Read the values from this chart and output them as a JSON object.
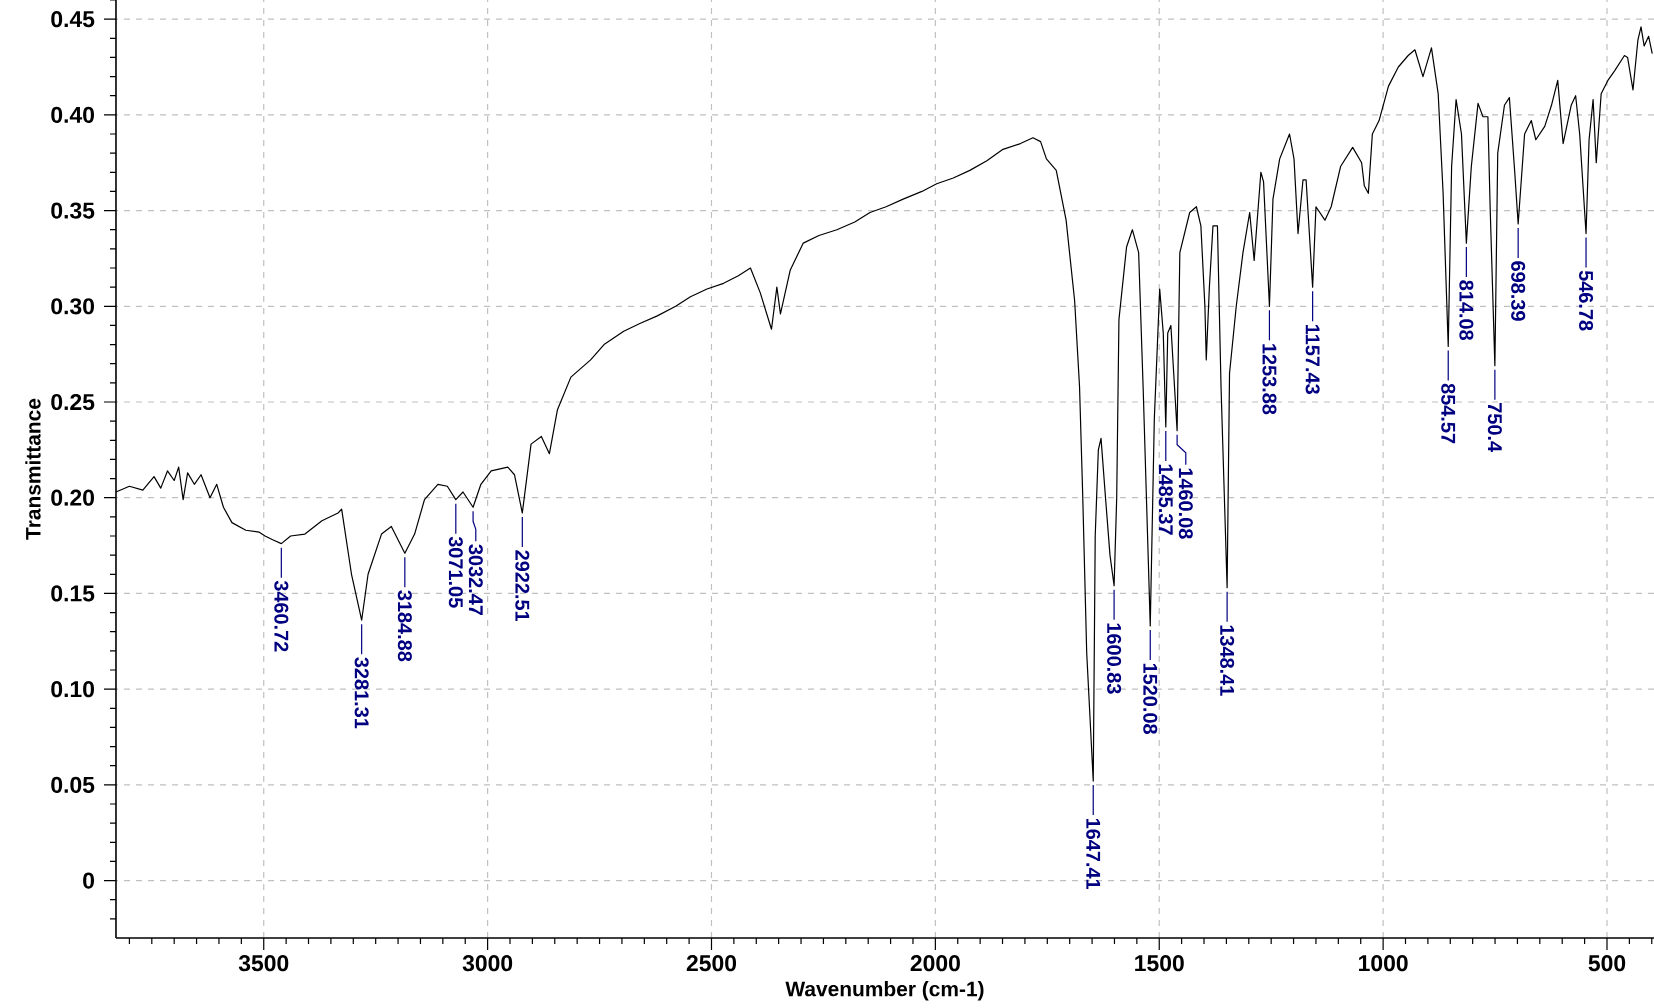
{
  "chart_data": {
    "type": "line",
    "xlabel": "Wavenumber (cm-1)",
    "ylabel": "Transmittance",
    "color": "#000000",
    "grid": true,
    "xlim": [
      3830,
      395
    ],
    "ylim": [
      -0.03,
      0.46
    ],
    "xticks": [
      {
        "value": 3800,
        "label": null
      },
      {
        "value": 3750,
        "label": null
      },
      {
        "value": 3700,
        "label": null
      },
      {
        "value": 3650,
        "label": null
      },
      {
        "value": 3600,
        "label": null
      },
      {
        "value": 3550,
        "label": null
      },
      3500,
      {
        "value": 3450,
        "label": null
      },
      {
        "value": 3400,
        "label": null
      },
      {
        "value": 3350,
        "label": null
      },
      {
        "value": 3300,
        "label": null
      },
      {
        "value": 3250,
        "label": null
      },
      {
        "value": 3200,
        "label": null
      },
      {
        "value": 3150,
        "label": null
      },
      {
        "value": 3100,
        "label": null
      },
      {
        "value": 3050,
        "label": null
      },
      3000,
      {
        "value": 2950,
        "label": null
      },
      {
        "value": 2900,
        "label": null
      },
      {
        "value": 2850,
        "label": null
      },
      {
        "value": 2800,
        "label": null
      },
      {
        "value": 2750,
        "label": null
      },
      {
        "value": 2700,
        "label": null
      },
      {
        "value": 2650,
        "label": null
      },
      {
        "value": 2600,
        "label": null
      },
      {
        "value": 2550,
        "label": null
      },
      2500,
      {
        "value": 2450,
        "label": null
      },
      {
        "value": 2400,
        "label": null
      },
      {
        "value": 2350,
        "label": null
      },
      {
        "value": 2300,
        "label": null
      },
      {
        "value": 2250,
        "label": null
      },
      {
        "value": 2200,
        "label": null
      },
      {
        "value": 2150,
        "label": null
      },
      {
        "value": 2100,
        "label": null
      },
      {
        "value": 2050,
        "label": null
      },
      2000,
      {
        "value": 1950,
        "label": null
      },
      {
        "value": 1900,
        "label": null
      },
      {
        "value": 1850,
        "label": null
      },
      {
        "value": 1800,
        "label": null
      },
      {
        "value": 1750,
        "label": null
      },
      {
        "value": 1700,
        "label": null
      },
      {
        "value": 1650,
        "label": null
      },
      {
        "value": 1600,
        "label": null
      },
      {
        "value": 1550,
        "label": null
      },
      1500,
      {
        "value": 1450,
        "label": null
      },
      {
        "value": 1400,
        "label": null
      },
      {
        "value": 1350,
        "label": null
      },
      {
        "value": 1300,
        "label": null
      },
      {
        "value": 1250,
        "label": null
      },
      {
        "value": 1200,
        "label": null
      },
      {
        "value": 1150,
        "label": null
      },
      {
        "value": 1100,
        "label": null
      },
      {
        "value": 1050,
        "label": null
      },
      1000,
      {
        "value": 950,
        "label": null
      },
      {
        "value": 900,
        "label": null
      },
      {
        "value": 850,
        "label": null
      },
      {
        "value": 800,
        "label": null
      },
      {
        "value": 750,
        "label": null
      },
      {
        "value": 700,
        "label": null
      },
      {
        "value": 650,
        "label": null
      },
      {
        "value": 600,
        "label": null
      },
      {
        "value": 550,
        "label": null
      },
      500,
      {
        "value": 450,
        "label": null
      },
      {
        "value": 400,
        "label": null
      }
    ],
    "yticks": [
      {
        "value": -0.02,
        "label": null
      },
      {
        "value": -0.01,
        "label": null
      },
      0,
      {
        "value": 0.01,
        "label": null
      },
      {
        "value": 0.02,
        "label": null
      },
      {
        "value": 0.03,
        "label": null
      },
      {
        "value": 0.04,
        "label": null
      },
      0.05,
      {
        "value": 0.06,
        "label": null
      },
      {
        "value": 0.07,
        "label": null
      },
      {
        "value": 0.08,
        "label": null
      },
      {
        "value": 0.09,
        "label": null
      },
      {
        "value": 0.1,
        "label": "0.10"
      },
      {
        "value": 0.11,
        "label": null
      },
      {
        "value": 0.12,
        "label": null
      },
      {
        "value": 0.13,
        "label": null
      },
      {
        "value": 0.14,
        "label": null
      },
      0.15,
      {
        "value": 0.16,
        "label": null
      },
      {
        "value": 0.17,
        "label": null
      },
      {
        "value": 0.18,
        "label": null
      },
      {
        "value": 0.19,
        "label": null
      },
      {
        "value": 0.2,
        "label": "0.20"
      },
      {
        "value": 0.21,
        "label": null
      },
      {
        "value": 0.22,
        "label": null
      },
      {
        "value": 0.23,
        "label": null
      },
      {
        "value": 0.24,
        "label": null
      },
      0.25,
      {
        "value": 0.26,
        "label": null
      },
      {
        "value": 0.27,
        "label": null
      },
      {
        "value": 0.28,
        "label": null
      },
      {
        "value": 0.29,
        "label": null
      },
      {
        "value": 0.3,
        "label": "0.30"
      },
      {
        "value": 0.31,
        "label": null
      },
      {
        "value": 0.32,
        "label": null
      },
      {
        "value": 0.33,
        "label": null
      },
      {
        "value": 0.34,
        "label": null
      },
      0.35,
      {
        "value": 0.36,
        "label": null
      },
      {
        "value": 0.37,
        "label": null
      },
      {
        "value": 0.38,
        "label": null
      },
      {
        "value": 0.39,
        "label": null
      },
      {
        "value": 0.4,
        "label": "0.40"
      },
      {
        "value": 0.41,
        "label": null
      },
      {
        "value": 0.42,
        "label": null
      },
      {
        "value": 0.43,
        "label": null
      },
      {
        "value": 0.44,
        "label": null
      },
      0.45,
      {
        "value": 0.46,
        "label": null
      }
    ],
    "x": [
      3830,
      3800,
      3770,
      3745,
      3730,
      3715,
      3700,
      3690,
      3680,
      3670,
      3655,
      3640,
      3620,
      3605,
      3590,
      3571,
      3540,
      3510,
      3497,
      3480,
      3460.72,
      3440,
      3408,
      3370,
      3334,
      3326,
      3304,
      3281.31,
      3267,
      3237,
      3215,
      3184.88,
      3163,
      3141,
      3111,
      3090,
      3071.05,
      3055,
      3032.47,
      3015,
      2992,
      2955,
      2940,
      2922.51,
      2903,
      2880,
      2862,
      2844,
      2814,
      2770,
      2740,
      2696,
      2660,
      2621,
      2580,
      2547,
      2510,
      2473,
      2440,
      2413,
      2391,
      2366,
      2354,
      2346,
      2324,
      2295,
      2260,
      2220,
      2180,
      2146,
      2110,
      2072,
      2030,
      1997,
      1960,
      1923,
      1885,
      1849,
      1810,
      1782,
      1765,
      1752,
      1730,
      1708,
      1689,
      1678,
      1671,
      1662,
      1647.41,
      1643,
      1636,
      1630,
      1620,
      1610,
      1600.83,
      1595,
      1590,
      1573,
      1560,
      1546,
      1536,
      1520.08,
      1511,
      1499,
      1491,
      1485.37,
      1481,
      1474,
      1460.08,
      1454,
      1432,
      1417,
      1407,
      1398,
      1395,
      1388,
      1380,
      1370,
      1362,
      1348.41,
      1343,
      1328,
      1313,
      1298,
      1288,
      1273,
      1267,
      1253.88,
      1246,
      1231,
      1209,
      1199,
      1190,
      1179,
      1172,
      1157.43,
      1150,
      1130,
      1116,
      1095,
      1068,
      1048,
      1042,
      1033,
      1024,
      1009,
      988,
      966,
      944,
      929,
      911,
      892,
      877,
      866,
      854.57,
      847,
      837,
      825,
      814.08,
      803,
      788,
      777,
      766,
      761,
      750.4,
      744,
      729,
      718,
      706,
      698.39,
      684,
      669,
      659,
      639,
      624,
      610,
      598,
      580,
      570,
      561,
      546.78,
      540,
      531,
      524,
      513,
      498,
      483,
      461,
      454,
      442,
      431,
      424,
      417,
      407,
      399
    ],
    "values": [
      0.203,
      0.206,
      0.204,
      0.211,
      0.205,
      0.214,
      0.209,
      0.216,
      0.199,
      0.213,
      0.207,
      0.212,
      0.2,
      0.207,
      0.195,
      0.187,
      0.183,
      0.182,
      0.18,
      0.178,
      0.176,
      0.18,
      0.181,
      0.188,
      0.192,
      0.194,
      0.16,
      0.136,
      0.16,
      0.181,
      0.185,
      0.171,
      0.181,
      0.199,
      0.207,
      0.206,
      0.199,
      0.203,
      0.195,
      0.207,
      0.214,
      0.216,
      0.212,
      0.192,
      0.228,
      0.232,
      0.223,
      0.246,
      0.263,
      0.272,
      0.28,
      0.287,
      0.291,
      0.295,
      0.3,
      0.305,
      0.309,
      0.312,
      0.316,
      0.32,
      0.307,
      0.288,
      0.31,
      0.296,
      0.319,
      0.333,
      0.337,
      0.34,
      0.344,
      0.349,
      0.352,
      0.356,
      0.36,
      0.364,
      0.367,
      0.371,
      0.376,
      0.382,
      0.385,
      0.388,
      0.386,
      0.377,
      0.371,
      0.345,
      0.303,
      0.258,
      0.202,
      0.119,
      0.052,
      0.18,
      0.225,
      0.231,
      0.2,
      0.17,
      0.154,
      0.2,
      0.293,
      0.331,
      0.34,
      0.328,
      0.258,
      0.133,
      0.241,
      0.309,
      0.286,
      0.237,
      0.286,
      0.29,
      0.235,
      0.328,
      0.349,
      0.352,
      0.342,
      0.3,
      0.272,
      0.31,
      0.342,
      0.342,
      0.258,
      0.153,
      0.265,
      0.3,
      0.328,
      0.349,
      0.324,
      0.37,
      0.365,
      0.3,
      0.356,
      0.377,
      0.39,
      0.377,
      0.338,
      0.366,
      0.366,
      0.31,
      0.352,
      0.345,
      0.352,
      0.373,
      0.383,
      0.375,
      0.363,
      0.359,
      0.39,
      0.397,
      0.415,
      0.425,
      0.431,
      0.434,
      0.42,
      0.435,
      0.411,
      0.359,
      0.279,
      0.373,
      0.408,
      0.39,
      0.333,
      0.373,
      0.406,
      0.399,
      0.399,
      0.352,
      0.269,
      0.38,
      0.405,
      0.409,
      0.37,
      0.343,
      0.39,
      0.397,
      0.387,
      0.394,
      0.405,
      0.418,
      0.385,
      0.405,
      0.41,
      0.39,
      0.338,
      0.387,
      0.408,
      0.375,
      0.411,
      0.418,
      0.423,
      0.431,
      0.43,
      0.413,
      0.439,
      0.446,
      0.436,
      0.441,
      0.432
    ],
    "annotations": [
      {
        "text": "3460.72",
        "x": 3460.72,
        "y": 0.176
      },
      {
        "text": "3281.31",
        "x": 3281.31,
        "y": 0.136
      },
      {
        "text": "3184.88",
        "x": 3184.88,
        "y": 0.171
      },
      {
        "text": "3071.05",
        "x": 3071.05,
        "y": 0.199
      },
      {
        "text": "3032.47",
        "x": 3032.47,
        "y": 0.195
      },
      {
        "text": "2922.51",
        "x": 2922.51,
        "y": 0.192
      },
      {
        "text": "1647.41",
        "x": 1647.41,
        "y": 0.052
      },
      {
        "text": "1600.83",
        "x": 1600.83,
        "y": 0.154
      },
      {
        "text": "1520.08",
        "x": 1520.08,
        "y": 0.133
      },
      {
        "text": "1485.37",
        "x": 1485.37,
        "y": 0.237
      },
      {
        "text": "1460.08",
        "x": 1460.08,
        "y": 0.235
      },
      {
        "text": "1348.41",
        "x": 1348.41,
        "y": 0.153
      },
      {
        "text": "1253.88",
        "x": 1253.88,
        "y": 0.3
      },
      {
        "text": "1157.43",
        "x": 1157.43,
        "y": 0.31
      },
      {
        "text": "854.57",
        "x": 854.57,
        "y": 0.279
      },
      {
        "text": "814.08",
        "x": 814.08,
        "y": 0.333
      },
      {
        "text": "750.4",
        "x": 750.4,
        "y": 0.269
      },
      {
        "text": "698.39",
        "x": 698.39,
        "y": 0.343
      },
      {
        "text": "546.78",
        "x": 546.78,
        "y": 0.338
      }
    ]
  }
}
